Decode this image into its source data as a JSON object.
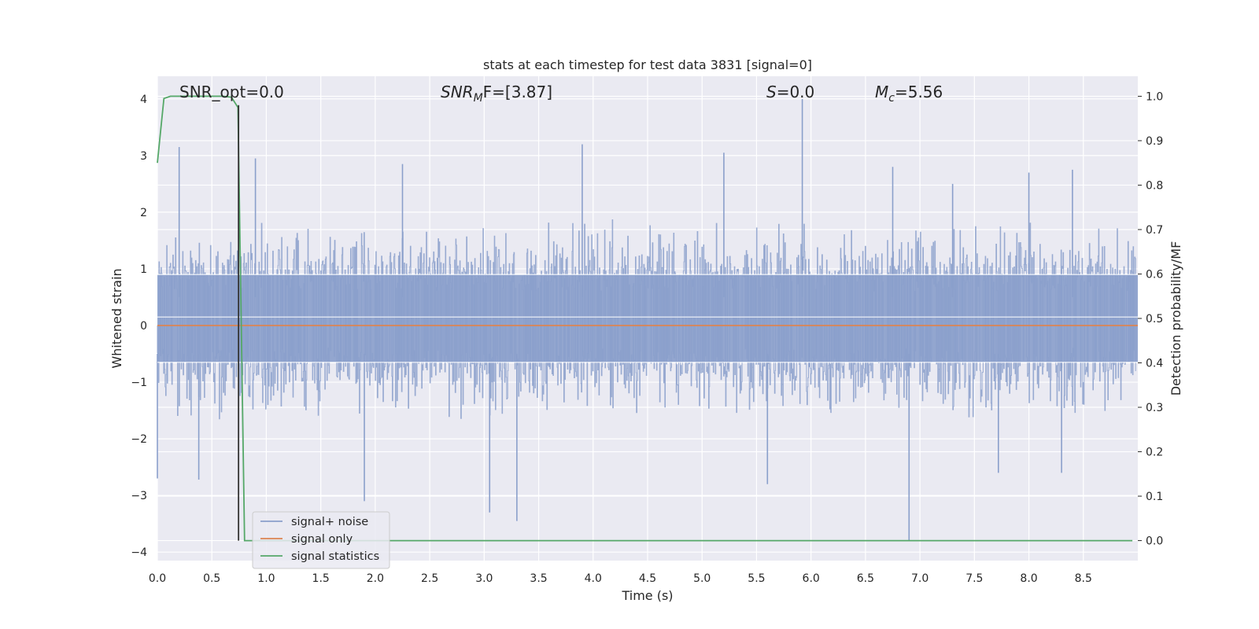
{
  "chart_data": {
    "type": "line",
    "title": "stats at each timestep for test data 3831 [signal=0]",
    "xlabel": "Time (s)",
    "ylabel": "Whitened strain",
    "ylabel_right": "Detection probability/MF",
    "xlim": [
      0.0,
      9.0
    ],
    "ylim": [
      -4.15,
      4.4
    ],
    "ylim_right": [
      -0.045,
      1.045
    ],
    "xticks": [
      "0.0",
      "0.5",
      "1.0",
      "1.5",
      "2.0",
      "2.5",
      "3.0",
      "3.5",
      "4.0",
      "4.5",
      "5.0",
      "5.5",
      "6.0",
      "6.5",
      "7.0",
      "7.5",
      "8.0",
      "8.5"
    ],
    "yticks": [
      "4",
      "3",
      "2",
      "1",
      "0",
      "−1",
      "−2",
      "−3",
      "−4"
    ],
    "yticks_right": [
      "1.0",
      "0.9",
      "0.8",
      "0.7",
      "0.6",
      "0.5",
      "0.4",
      "0.3",
      "0.2",
      "0.1",
      "0.0"
    ],
    "annotations": [
      {
        "base": "SNR_opt=0.0",
        "sub": "",
        "rest": ""
      },
      {
        "base": "SNR",
        "sub": "M",
        "rest": "F=[3.87]"
      },
      {
        "base": "S",
        "sub": "",
        "rest": "=0.0"
      },
      {
        "base": "M",
        "sub": "c",
        "rest": "=5.56"
      }
    ],
    "noise_series": {
      "name": "signal+ noise",
      "color": "#8a9fcb",
      "peak_x": [
        0.2,
        0.9,
        2.25,
        3.9,
        5.2,
        5.92,
        6.75,
        7.3,
        8.0,
        8.4
      ],
      "peak_y": [
        3.15,
        2.95,
        2.85,
        3.2,
        3.05,
        4.0,
        2.8,
        2.5,
        2.7,
        2.75
      ],
      "trough_x": [
        0.0,
        0.38,
        1.9,
        3.05,
        3.3,
        5.6,
        6.9,
        7.72,
        8.3
      ],
      "trough_y": [
        -2.7,
        -2.72,
        -3.1,
        -3.3,
        -3.45,
        -2.8,
        -3.8,
        -2.6,
        -2.6
      ]
    },
    "series": [
      {
        "name": "signal only",
        "color": "#dd8452",
        "axis": "left",
        "x": [
          0.0,
          9.0
        ],
        "y": [
          0.0,
          0.0
        ]
      },
      {
        "name": "signal statistics",
        "color": "#55a868",
        "axis": "right",
        "x": [
          0.0,
          0.06,
          0.12,
          0.2,
          0.4,
          0.6,
          0.68,
          0.74,
          0.8,
          0.86,
          1.0,
          2.0,
          3.0,
          4.0,
          5.0,
          6.0,
          7.0,
          8.0,
          8.95
        ],
        "y": [
          0.85,
          0.995,
          1.0,
          1.0,
          1.0,
          1.0,
          0.998,
          0.975,
          0.0,
          0.0,
          0.0,
          0.0,
          0.0,
          0.0,
          0.0,
          0.0,
          0.0,
          0.0,
          0.0
        ]
      }
    ],
    "vline": {
      "x": 0.745,
      "color": "#333333"
    },
    "grid": true,
    "legend_position": "lower-left",
    "background": "#eaeaf2"
  }
}
